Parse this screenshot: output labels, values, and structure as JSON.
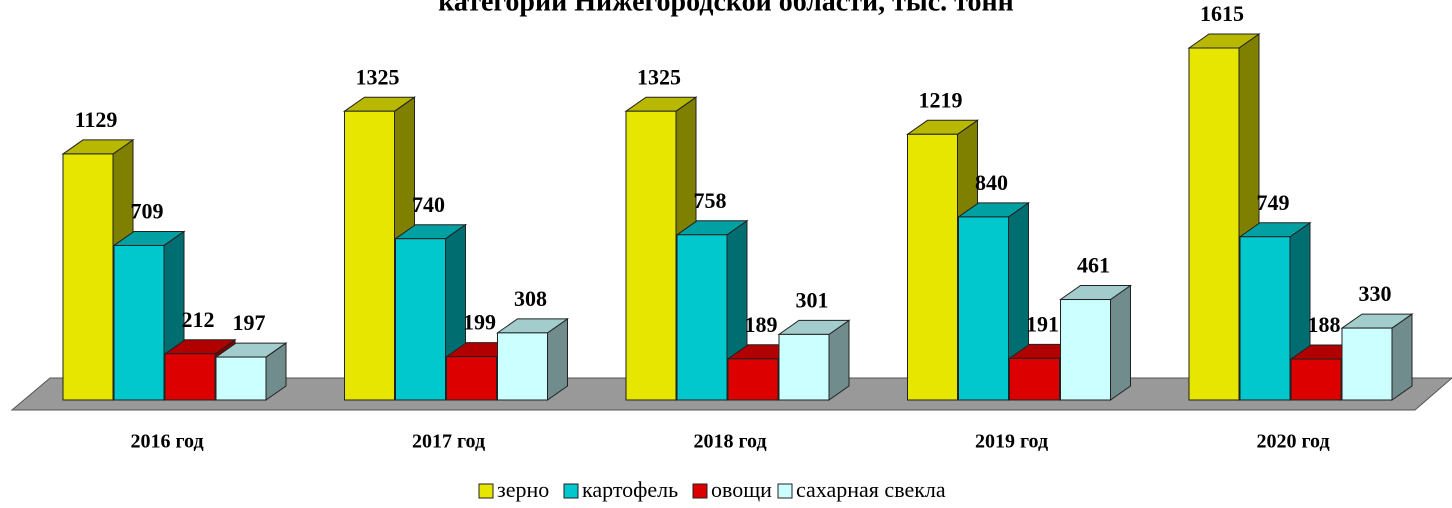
{
  "chart_data": {
    "type": "bar3d",
    "title": "категорий Нижегородской области, тыс. тонн",
    "categories": [
      "2016 год",
      "2017 год",
      "2018 год",
      "2019 год",
      "2020 год"
    ],
    "series": [
      {
        "name": "зерно",
        "color": "#e6e600",
        "values": [
          1129,
          1325,
          1325,
          1219,
          1615
        ]
      },
      {
        "name": "картофель",
        "color": "#00c8cc",
        "values": [
          709,
          740,
          758,
          840,
          749
        ]
      },
      {
        "name": "овощи",
        "color": "#dd0000",
        "values": [
          212,
          199,
          189,
          191,
          188
        ]
      },
      {
        "name": "сахарная свекла",
        "color": "#ccffff",
        "values": [
          197,
          308,
          301,
          461,
          330
        ]
      }
    ]
  }
}
